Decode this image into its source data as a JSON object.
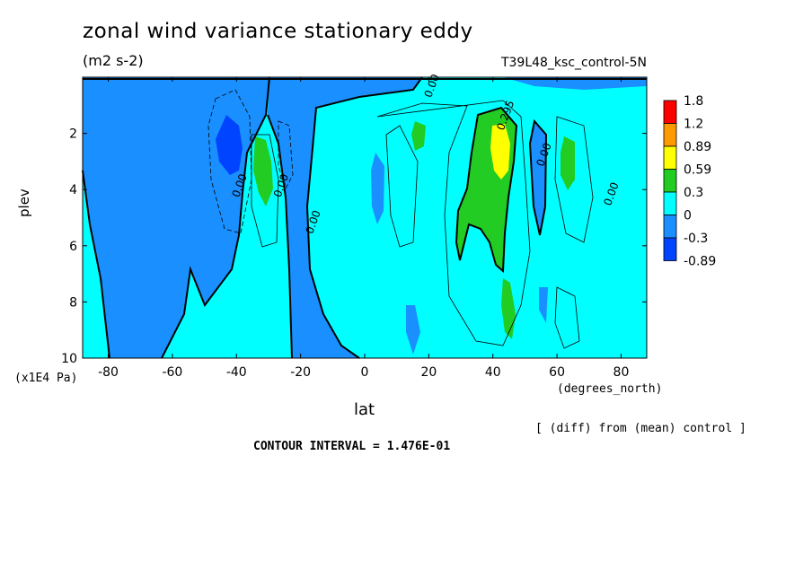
{
  "header": {
    "title": "zonal wind variance stationary eddy",
    "units": "(m2 s-2)",
    "run": "T39L48_ksc_control-5N"
  },
  "footer": {
    "diff_note": "[ (diff) from (mean) control ]",
    "contour_interval": "CONTOUR INTERVAL = 1.476E-01"
  },
  "chart_data": {
    "type": "contour",
    "title": "zonal wind variance stationary eddy",
    "subtitle": "(m2 s-2)",
    "xlabel": "lat",
    "x_units": "(degrees_north)",
    "ylabel": "plev",
    "y_units": "(x1E4 Pa)",
    "xlim": [
      -88,
      88
    ],
    "ylim": [
      10,
      0
    ],
    "x_ticks": [
      -80,
      -60,
      -40,
      -20,
      0,
      20,
      40,
      60,
      80
    ],
    "y_ticks": [
      2,
      4,
      6,
      8,
      10
    ],
    "x_tick_labels": [
      "-80",
      "-60",
      "-40",
      "-20",
      "0",
      "20",
      "40",
      "60",
      "80"
    ],
    "y_tick_labels": [
      "2",
      "4",
      "6",
      "8",
      "10"
    ],
    "legend": {
      "placement": "right",
      "labels": [
        "1.8",
        "1.2",
        "0.89",
        "0.59",
        "0.3",
        "0",
        "-0.3",
        "-0.89"
      ],
      "colors": [
        "#ff0000",
        "#ff9900",
        "#ffff00",
        "#22cc22",
        "#00ffff",
        "#1a8fff",
        "#0044ff"
      ]
    },
    "contour_labels": [
      {
        "text": "0.00",
        "lat": 22,
        "plev": 0.35
      },
      {
        "text": "0.00",
        "lat": -38,
        "plev": 3.9
      },
      {
        "text": "0.00",
        "lat": -25,
        "plev": 3.9
      },
      {
        "text": "0.00",
        "lat": -15,
        "plev": 5.2
      },
      {
        "text": "0.00",
        "lat": 57,
        "plev": 2.8
      },
      {
        "text": "0.00",
        "lat": 78,
        "plev": 4.2
      },
      {
        "text": "0.295",
        "lat": 45,
        "plev": 1.4
      }
    ],
    "contour_interval": 0.1476,
    "colors": {
      "bg_negative": "#1a8fff",
      "bg_zero": "#00ffff",
      "positive_low": "#22cc22",
      "positive_mid": "#ffff00",
      "negative_strong": "#0044ff"
    }
  }
}
